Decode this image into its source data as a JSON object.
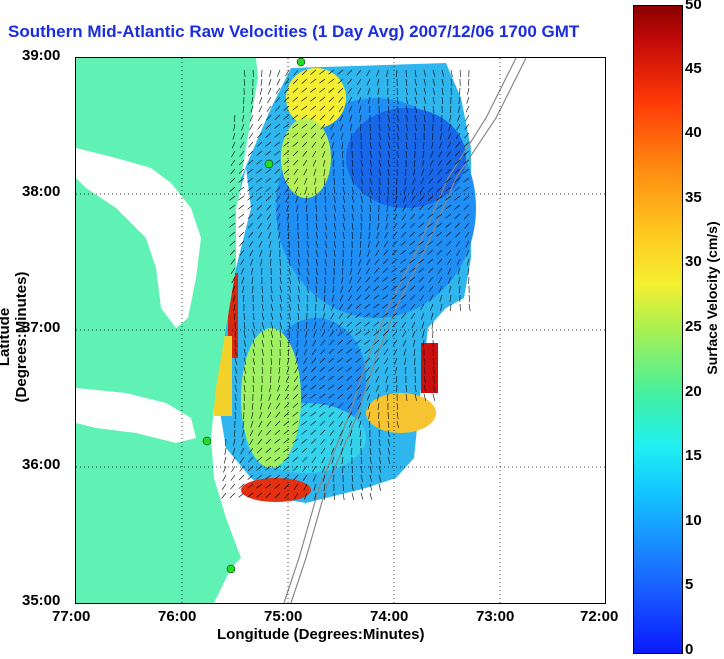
{
  "title": "Southern Mid-Atlantic Raw Velocities (1 Day Avg) 2007/12/06 1700 GMT",
  "axes": {
    "xlabel": "Longitude (Degrees:Minutes)",
    "ylabel": "Latitude (Degrees:Minutes)",
    "x_ticks": [
      "77:00",
      "76:00",
      "75:00",
      "74:00",
      "73:00",
      "72:00"
    ],
    "y_ticks": [
      "39:00",
      "38:00",
      "37:00",
      "36:00",
      "35:00"
    ]
  },
  "colorbar": {
    "label": "Surface Velocity (cm/s)",
    "ticks": [
      "50",
      "45",
      "40",
      "35",
      "30",
      "25",
      "20",
      "15",
      "10",
      "5",
      "0"
    ],
    "range": [
      0,
      50
    ],
    "colormap": "jet"
  },
  "colors": {
    "land": "#5ff2b4",
    "title": "#1a2ee0",
    "station": "#22dd22"
  }
}
